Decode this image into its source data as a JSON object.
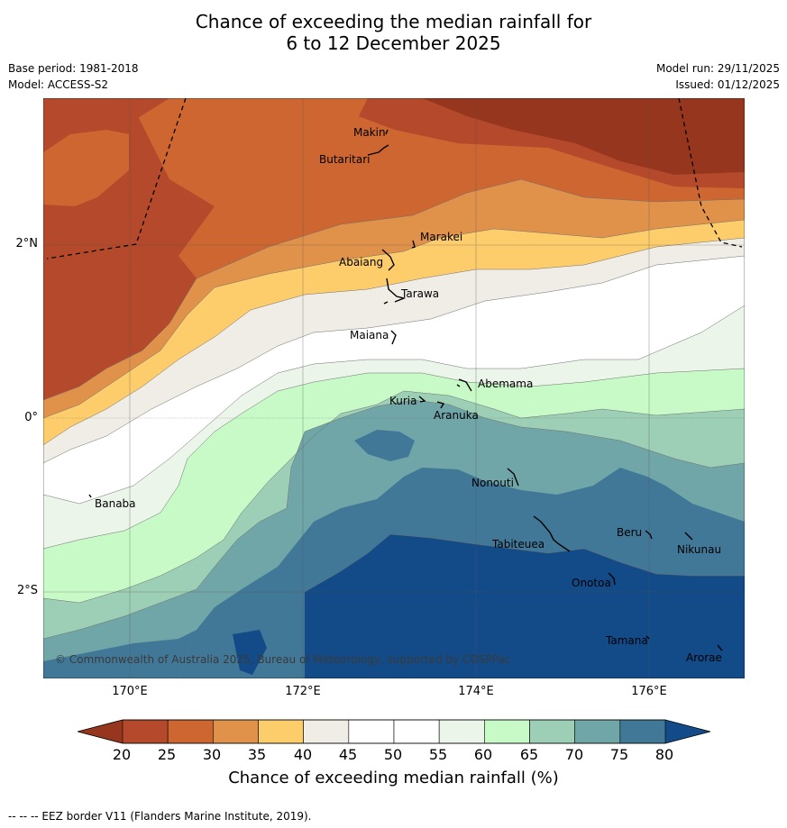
{
  "title": {
    "line1": "Chance of exceeding the median rainfall for",
    "line2": "6 to 12 December 2025"
  },
  "meta": {
    "base_period": "Base period: 1981-2018",
    "model": "Model: ACCESS-S2",
    "model_run": "Model run: 29/11/2025",
    "issued": "Issued: 01/12/2025"
  },
  "map": {
    "lat_labels": [
      "2°N",
      "0°",
      "2°S"
    ],
    "lon_labels": [
      "170°E",
      "172°E",
      "174°E",
      "176°E"
    ],
    "places": {
      "makin": "Makin",
      "butaritari": "Butaritari",
      "marakei": "Marakei",
      "abaiang": "Abaiang",
      "tarawa": "Tarawa",
      "maiana": "Maiana",
      "abemama": "Abemama",
      "kuria": "Kuria",
      "aranuka": "Aranuka",
      "banaba": "Banaba",
      "nonouti": "Nonouti",
      "tabiteuea": "Tabiteuea",
      "beru": "Beru",
      "nikunau": "Nikunau",
      "onotoa": "Onotoa",
      "tamana": "Tamana",
      "arorae": "Arorae"
    },
    "copyright": "© Commonwealth of Australia 2025, Bureau of Meteorology, supported by COSPPac"
  },
  "colorbar": {
    "ticks": [
      "20",
      "25",
      "30",
      "35",
      "40",
      "45",
      "50",
      "55",
      "60",
      "65",
      "70",
      "75",
      "80"
    ],
    "colors": [
      "#b44a2b",
      "#cd6631",
      "#e1924a",
      "#fdcd6c",
      "#f0ede7",
      "#ffffff",
      "#ffffff",
      "#ebf5e9",
      "#c8fac8",
      "#9ccfb6",
      "#71a6a8",
      "#417898"
    ],
    "below_color": "#97361e",
    "above_color": "#124b88",
    "label": "Chance of exceeding median rainfall (%)"
  },
  "footer": "--  --  -- EEZ border V11 (Flanders Marine Institute, 2019)."
}
